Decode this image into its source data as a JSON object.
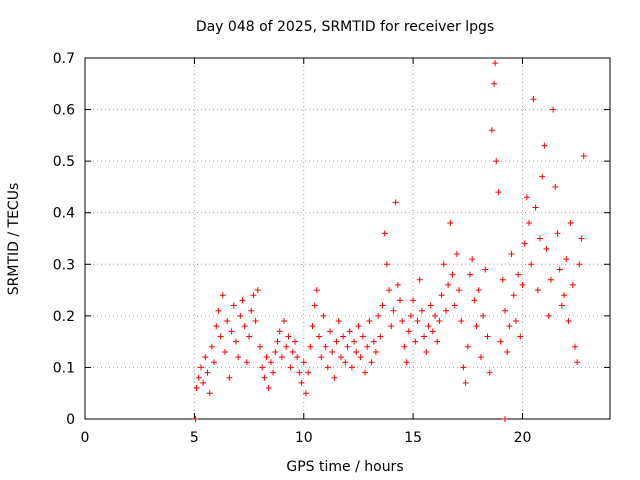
{
  "chart_data": {
    "type": "scatter",
    "title": "Day 048 of 2025, SRMTID for receiver lpgs",
    "xlabel": "GPS time / hours",
    "ylabel": "SRMTID / TECUs",
    "xlim": [
      0,
      24
    ],
    "ylim": [
      0,
      0.7
    ],
    "xticks": [
      0,
      5,
      10,
      15,
      20
    ],
    "xtick_labels": [
      "0",
      "5",
      "10",
      "15",
      "20"
    ],
    "yticks": [
      0,
      0.1,
      0.2,
      0.3,
      0.4,
      0.5,
      0.6,
      0.7
    ],
    "ytick_labels": [
      "0",
      "0.1",
      "0.2",
      "0.3",
      "0.4",
      "0.5",
      "0.6",
      "0.7"
    ],
    "grid": true,
    "marker": "+",
    "color": "#ff0000",
    "series": [
      {
        "name": "SRMTID",
        "points": [
          [
            5.05,
            0.0
          ],
          [
            5.1,
            0.06
          ],
          [
            5.2,
            0.08
          ],
          [
            5.3,
            0.1
          ],
          [
            5.4,
            0.07
          ],
          [
            5.5,
            0.12
          ],
          [
            5.6,
            0.09
          ],
          [
            5.7,
            0.05
          ],
          [
            5.8,
            0.14
          ],
          [
            5.9,
            0.11
          ],
          [
            6.0,
            0.18
          ],
          [
            6.1,
            0.21
          ],
          [
            6.2,
            0.16
          ],
          [
            6.3,
            0.24
          ],
          [
            6.4,
            0.13
          ],
          [
            6.5,
            0.19
          ],
          [
            6.6,
            0.08
          ],
          [
            6.7,
            0.17
          ],
          [
            6.8,
            0.22
          ],
          [
            6.9,
            0.15
          ],
          [
            7.0,
            0.12
          ],
          [
            7.1,
            0.2
          ],
          [
            7.2,
            0.23
          ],
          [
            7.3,
            0.18
          ],
          [
            7.4,
            0.11
          ],
          [
            7.5,
            0.16
          ],
          [
            7.6,
            0.21
          ],
          [
            7.7,
            0.24
          ],
          [
            7.8,
            0.19
          ],
          [
            7.9,
            0.25
          ],
          [
            8.0,
            0.14
          ],
          [
            8.1,
            0.1
          ],
          [
            8.2,
            0.08
          ],
          [
            8.3,
            0.12
          ],
          [
            8.4,
            0.06
          ],
          [
            8.5,
            0.11
          ],
          [
            8.6,
            0.09
          ],
          [
            8.7,
            0.13
          ],
          [
            8.8,
            0.15
          ],
          [
            8.9,
            0.17
          ],
          [
            9.0,
            0.12
          ],
          [
            9.1,
            0.19
          ],
          [
            9.2,
            0.14
          ],
          [
            9.3,
            0.16
          ],
          [
            9.4,
            0.1
          ],
          [
            9.5,
            0.13
          ],
          [
            9.6,
            0.15
          ],
          [
            9.7,
            0.12
          ],
          [
            9.8,
            0.09
          ],
          [
            9.9,
            0.07
          ],
          [
            10.0,
            0.11
          ],
          [
            10.1,
            0.05
          ],
          [
            10.2,
            0.09
          ],
          [
            10.3,
            0.14
          ],
          [
            10.4,
            0.18
          ],
          [
            10.5,
            0.22
          ],
          [
            10.6,
            0.25
          ],
          [
            10.7,
            0.16
          ],
          [
            10.8,
            0.12
          ],
          [
            10.9,
            0.2
          ],
          [
            11.0,
            0.14
          ],
          [
            11.1,
            0.1
          ],
          [
            11.2,
            0.17
          ],
          [
            11.3,
            0.13
          ],
          [
            11.4,
            0.08
          ],
          [
            11.5,
            0.15
          ],
          [
            11.6,
            0.19
          ],
          [
            11.7,
            0.12
          ],
          [
            11.8,
            0.16
          ],
          [
            11.9,
            0.11
          ],
          [
            12.0,
            0.14
          ],
          [
            12.1,
            0.17
          ],
          [
            12.2,
            0.1
          ],
          [
            12.3,
            0.15
          ],
          [
            12.4,
            0.13
          ],
          [
            12.5,
            0.18
          ],
          [
            12.6,
            0.12
          ],
          [
            12.7,
            0.16
          ],
          [
            12.8,
            0.09
          ],
          [
            12.9,
            0.14
          ],
          [
            13.0,
            0.19
          ],
          [
            13.1,
            0.11
          ],
          [
            13.2,
            0.15
          ],
          [
            13.3,
            0.13
          ],
          [
            13.4,
            0.2
          ],
          [
            13.5,
            0.16
          ],
          [
            13.6,
            0.22
          ],
          [
            13.7,
            0.36
          ],
          [
            13.8,
            0.3
          ],
          [
            13.9,
            0.25
          ],
          [
            14.0,
            0.18
          ],
          [
            14.1,
            0.21
          ],
          [
            14.2,
            0.42
          ],
          [
            14.3,
            0.26
          ],
          [
            14.4,
            0.23
          ],
          [
            14.5,
            0.19
          ],
          [
            14.6,
            0.14
          ],
          [
            14.7,
            0.11
          ],
          [
            14.8,
            0.17
          ],
          [
            14.9,
            0.2
          ],
          [
            15.0,
            0.23
          ],
          [
            15.1,
            0.15
          ],
          [
            15.2,
            0.19
          ],
          [
            15.3,
            0.27
          ],
          [
            15.4,
            0.21
          ],
          [
            15.5,
            0.16
          ],
          [
            15.6,
            0.13
          ],
          [
            15.7,
            0.18
          ],
          [
            15.8,
            0.22
          ],
          [
            15.9,
            0.17
          ],
          [
            16.0,
            0.2
          ],
          [
            16.1,
            0.15
          ],
          [
            16.2,
            0.19
          ],
          [
            16.3,
            0.24
          ],
          [
            16.4,
            0.3
          ],
          [
            16.5,
            0.21
          ],
          [
            16.6,
            0.26
          ],
          [
            16.7,
            0.38
          ],
          [
            16.8,
            0.28
          ],
          [
            16.9,
            0.22
          ],
          [
            17.0,
            0.32
          ],
          [
            17.1,
            0.25
          ],
          [
            17.2,
            0.19
          ],
          [
            17.3,
            0.1
          ],
          [
            17.4,
            0.07
          ],
          [
            17.5,
            0.14
          ],
          [
            17.6,
            0.28
          ],
          [
            17.7,
            0.31
          ],
          [
            17.8,
            0.23
          ],
          [
            17.9,
            0.18
          ],
          [
            18.0,
            0.25
          ],
          [
            18.1,
            0.12
          ],
          [
            18.2,
            0.2
          ],
          [
            18.3,
            0.29
          ],
          [
            18.4,
            0.16
          ],
          [
            18.5,
            0.09
          ],
          [
            18.6,
            0.56
          ],
          [
            18.7,
            0.65
          ],
          [
            18.75,
            0.69
          ],
          [
            18.8,
            0.5
          ],
          [
            18.9,
            0.44
          ],
          [
            19.0,
            0.15
          ],
          [
            19.1,
            0.27
          ],
          [
            19.2,
            0.21
          ],
          [
            19.3,
            0.13
          ],
          [
            19.4,
            0.18
          ],
          [
            19.5,
            0.32
          ],
          [
            19.6,
            0.24
          ],
          [
            19.7,
            0.19
          ],
          [
            19.8,
            0.28
          ],
          [
            19.9,
            0.16
          ],
          [
            20.0,
            0.26
          ],
          [
            20.1,
            0.34
          ],
          [
            20.2,
            0.43
          ],
          [
            20.3,
            0.38
          ],
          [
            20.4,
            0.3
          ],
          [
            20.5,
            0.62
          ],
          [
            20.6,
            0.41
          ],
          [
            20.7,
            0.25
          ],
          [
            20.8,
            0.35
          ],
          [
            20.9,
            0.47
          ],
          [
            21.0,
            0.53
          ],
          [
            21.1,
            0.33
          ],
          [
            21.2,
            0.2
          ],
          [
            21.3,
            0.27
          ],
          [
            21.4,
            0.6
          ],
          [
            21.5,
            0.45
          ],
          [
            21.6,
            0.36
          ],
          [
            21.7,
            0.29
          ],
          [
            21.8,
            0.22
          ],
          [
            21.9,
            0.24
          ],
          [
            22.0,
            0.31
          ],
          [
            22.1,
            0.19
          ],
          [
            22.2,
            0.38
          ],
          [
            22.3,
            0.26
          ],
          [
            22.4,
            0.14
          ],
          [
            22.5,
            0.11
          ],
          [
            22.6,
            0.3
          ],
          [
            22.7,
            0.35
          ],
          [
            22.8,
            0.51
          ],
          [
            19.2,
            0.0
          ]
        ]
      }
    ]
  }
}
